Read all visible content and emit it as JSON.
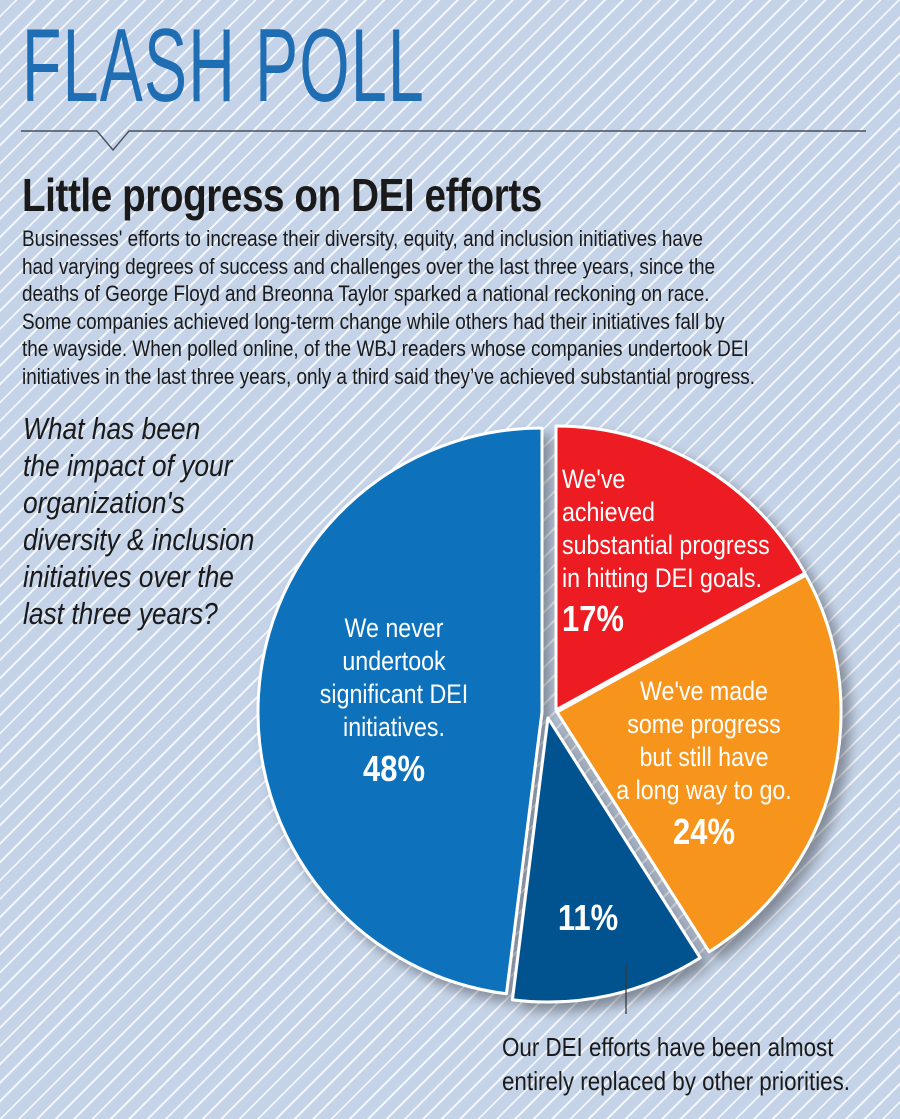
{
  "header": {
    "kicker": "FLASH POLL",
    "headline": "Little progress on DEI efforts",
    "intro_lines": [
      "Businesses' efforts to increase their diversity, equity, and inclusion initiatives have",
      "had varying degrees of success and challenges over the last three years, since the",
      "deaths of George Floyd and Breonna Taylor sparked a national reckoning on race.",
      "Some companies achieved long-term change while others had their initiatives fall by",
      "the wayside. When polled online, of the WBJ readers whose companies undertook DEI",
      "initiatives in the last three years, only a third said they’ve achieved substantial progress."
    ]
  },
  "question_lines": [
    "What has been",
    "the impact of your",
    "organization's",
    "diversity & inclusion",
    "initiatives over the",
    "last three years?"
  ],
  "colors": {
    "background": "#c5d3e8",
    "kicker": "#1f6db3",
    "never": "#0e72bb",
    "substantial": "#ec1c24",
    "some": "#f7941d",
    "replaced": "#00538e"
  },
  "chart_data": {
    "type": "pie",
    "title": "What has been the impact of your organization's diversity & inclusion initiatives over the last three years?",
    "unit": "%",
    "start": "12 o'clock, clockwise",
    "slices": [
      {
        "key": "substantial",
        "label_lines": [
          "We've",
          "achieved",
          "substantial progress",
          "in hitting DEI goals."
        ],
        "value": 17,
        "display": "17%",
        "color": "#ec1c24"
      },
      {
        "key": "some",
        "label_lines": [
          "We've made",
          "some progress",
          "but still have",
          "a long way to go."
        ],
        "value": 24,
        "display": "24%",
        "color": "#f7941d"
      },
      {
        "key": "replaced",
        "label_lines": [],
        "value": 11,
        "display": "11%",
        "color": "#00538e",
        "callout_lines": [
          "Our DEI efforts have been almost",
          "entirely replaced by other priorities."
        ]
      },
      {
        "key": "never",
        "label_lines": [
          "We never",
          "undertook",
          "significant DEI",
          "initiatives."
        ],
        "value": 48,
        "display": "48%",
        "color": "#0e72bb"
      }
    ]
  }
}
